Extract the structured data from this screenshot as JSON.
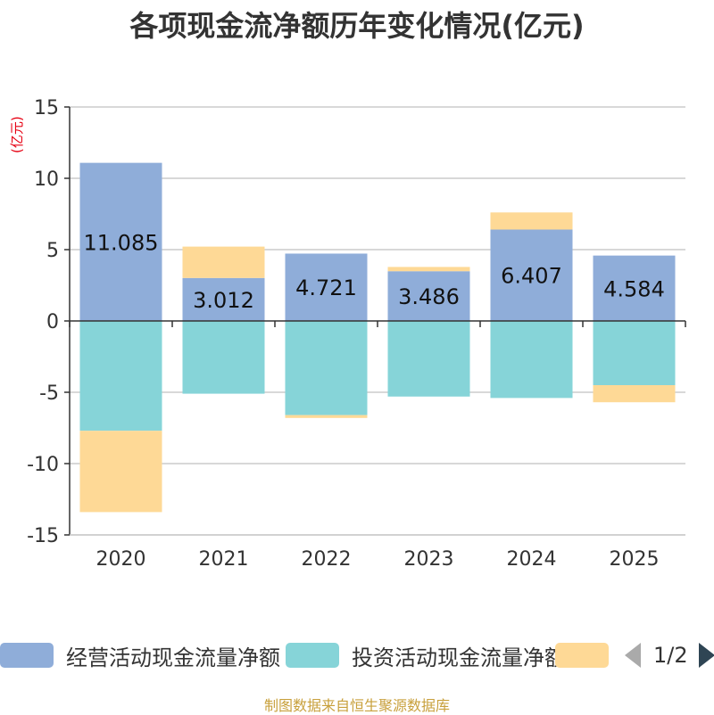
{
  "chart_data": {
    "type": "bar",
    "stacked": true,
    "title": "各项现金流净额历年变化情况(亿元)",
    "ylabel": "(亿元)",
    "ylim": [
      -15,
      15
    ],
    "yticks": [
      15,
      10,
      5,
      0,
      -5,
      -10,
      -15
    ],
    "categories": [
      "2020",
      "2021",
      "2022",
      "2023",
      "2024",
      "2025"
    ],
    "series": [
      {
        "name": "经营活动现金流量净额",
        "color": "#8fadd9",
        "values": [
          11.085,
          3.012,
          4.721,
          3.486,
          6.407,
          4.584
        ],
        "labels": [
          "11.085",
          "3.012",
          "4.721",
          "3.486",
          "6.407",
          "4.584"
        ]
      },
      {
        "name": "投资活动现金流量净额",
        "color": "#86d4d8",
        "values": [
          -7.7,
          -5.1,
          -6.6,
          -5.3,
          -5.4,
          -4.5
        ]
      },
      {
        "name": "",
        "color": "#fed996",
        "values": [
          -5.7,
          2.2,
          -0.2,
          0.3,
          1.2,
          -1.2
        ]
      }
    ],
    "legend_position": "bottom",
    "grid": true
  },
  "legend": {
    "items": [
      {
        "label": "经营活动现金流量净额",
        "color": "#8fadd9"
      },
      {
        "label": "投资活动现金流量净额",
        "color": "#86d4d8"
      },
      {
        "label": "",
        "color": "#fed996"
      }
    ],
    "page_indicator": "1/2"
  },
  "source": "制图数据来自恒生聚源数据库"
}
